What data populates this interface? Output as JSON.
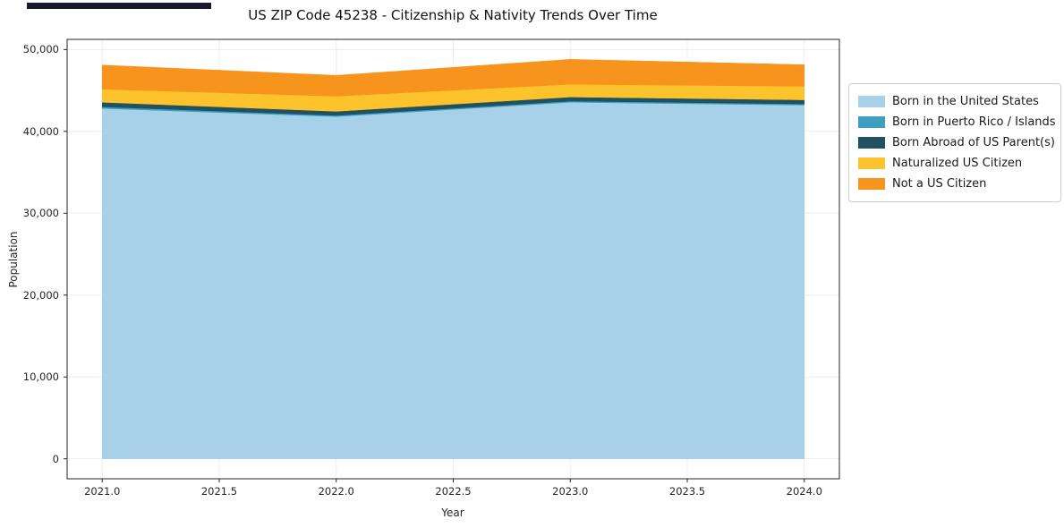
{
  "chart_data": {
    "type": "area",
    "stacked": true,
    "title": "US ZIP Code 45238 - Citizenship & Nativity Trends Over Time",
    "xlabel": "Year",
    "ylabel": "Population",
    "x": [
      2021,
      2022,
      2023,
      2024
    ],
    "series": [
      {
        "name": "Born in the United States",
        "color": "#a6d1e8",
        "values": [
          42800,
          41800,
          43550,
          43200
        ]
      },
      {
        "name": "Born in Puerto Rico / Islands",
        "color": "#3e9fc1",
        "values": [
          200,
          150,
          150,
          150
        ]
      },
      {
        "name": "Born Abroad of US Parent(s)",
        "color": "#21505f",
        "values": [
          550,
          500,
          500,
          500
        ]
      },
      {
        "name": "Naturalized US Citizen",
        "color": "#fdc32c",
        "values": [
          1600,
          1850,
          1550,
          1650
        ]
      },
      {
        "name": "Not a US Citizen",
        "color": "#f7941e",
        "values": [
          2950,
          2550,
          3050,
          2650
        ]
      }
    ],
    "xlim": [
      2020.85,
      2024.15
    ],
    "ylim": [
      -2440,
      51240
    ],
    "xticks": {
      "values": [
        2021.0,
        2021.5,
        2022.0,
        2022.5,
        2023.0,
        2023.5,
        2024.0
      ],
      "labels": [
        "2021.0",
        "2021.5",
        "2022.0",
        "2022.5",
        "2023.0",
        "2023.5",
        "2024.0"
      ]
    },
    "yticks": {
      "values": [
        0,
        10000,
        20000,
        30000,
        40000,
        50000
      ],
      "labels": [
        "0",
        "10,000",
        "20,000",
        "30,000",
        "40,000",
        "50,000"
      ]
    },
    "grid": true,
    "grid_color": "#ededed",
    "axis_color": "#262626",
    "legend_position": "right-outside"
  }
}
